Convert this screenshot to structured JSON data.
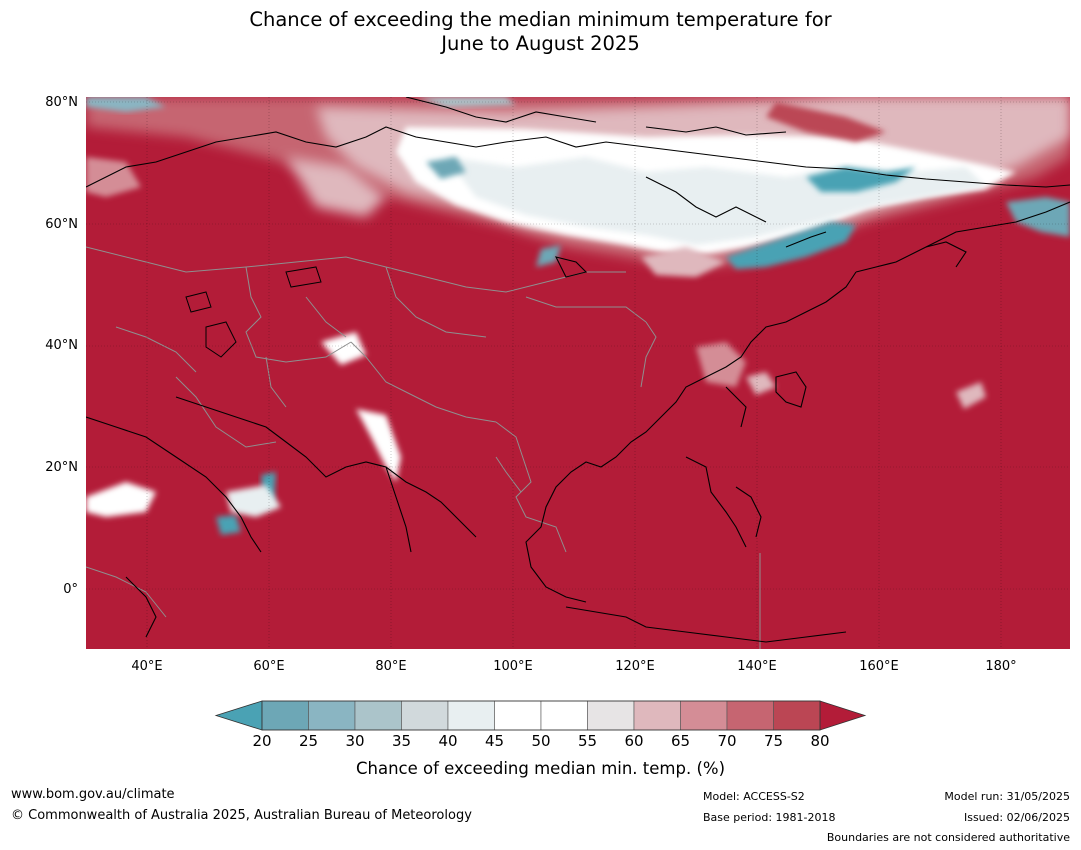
{
  "title": {
    "line1": "Chance of exceeding the median minimum temperature for",
    "line2": "June to August 2025"
  },
  "map": {
    "region": "Asia",
    "base_color": "#b31c38",
    "lat_labels": [
      "80°N",
      "60°N",
      "40°N",
      "20°N",
      "0°"
    ],
    "lon_labels": [
      "40°E",
      "60°E",
      "80°E",
      "100°E",
      "120°E",
      "140°E",
      "160°E",
      "180°"
    ]
  },
  "colorbar": {
    "ticks": [
      "20",
      "25",
      "30",
      "35",
      "40",
      "45",
      "50",
      "55",
      "60",
      "65",
      "70",
      "75",
      "80"
    ],
    "colors": [
      "#6da7b6",
      "#8ab5c2",
      "#abc4ca",
      "#d1d9dc",
      "#e8eff1",
      "#ffffff",
      "#ffffff",
      "#e7e4e5",
      "#dfb8bd",
      "#d48d96",
      "#c66571",
      "#bb4654"
    ],
    "low_extend_color": "#4aa2b4",
    "high_extend_color": "#b31c38",
    "label": "Chance of exceeding median min. temp. (%)"
  },
  "footer": {
    "url": "www.bom.gov.au/climate",
    "copyright": "© Commonwealth of Australia 2025, Australian Bureau of Meteorology",
    "model": "Model: ACCESS-S2",
    "base_period": "Base period: 1981-2018",
    "model_run": "Model run: 31/05/2025",
    "issued": "Issued: 02/06/2025",
    "disclaimer": "Boundaries are not considered authoritative"
  }
}
